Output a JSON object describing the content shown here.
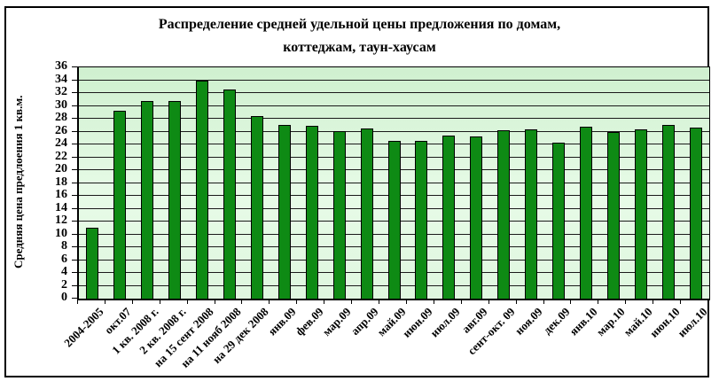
{
  "chart_data": {
    "type": "bar",
    "title": "Распределение средней удельной цены предложения по домам, коттеджам, таун-хаусам",
    "title_lines": [
      "Распределение средней удельной цены предложения по домам,",
      "коттеджам, таун-хаусам"
    ],
    "ylabel": "Средняя цена предлоения 1 кв.м.",
    "xlabel": "",
    "categories": [
      "2004-2005",
      "окт.07",
      "1 кв. 2008 г.",
      "2 кв. 2008 г.",
      "на 15 сент 2008",
      "на 11 нояб 2008",
      "на 29 дек 2008",
      "янв.09",
      "фев.09",
      "мар.09",
      "апр.09",
      "май.09",
      "июн.09",
      "июл.09",
      "авг.09",
      "сент-окт. 09",
      "ноя.09",
      "дек.09",
      "янв.10",
      "мар.10",
      "май.10",
      "июн.10",
      "июл.10"
    ],
    "values": [
      11,
      29.2,
      30.7,
      30.8,
      34,
      32.5,
      28.4,
      27.1,
      26.9,
      26.1,
      26.5,
      24.6,
      24.5,
      25.4,
      25.3,
      26.2,
      26.4,
      24.3,
      26.8,
      25.9,
      26.3,
      27,
      26.6
    ],
    "ylim": [
      0,
      36
    ],
    "ytick_step": 2,
    "grid": true,
    "legend_position": "none",
    "colors": {
      "bar_fill": "#0E8A14",
      "bar_border": "#000000",
      "plot_bg_top": "#CFF0CF",
      "plot_bg_mid": "#E7FBE7",
      "plot_bg_bottom": "#DFF7DF",
      "axis": "#000000",
      "text": "#000000"
    }
  }
}
